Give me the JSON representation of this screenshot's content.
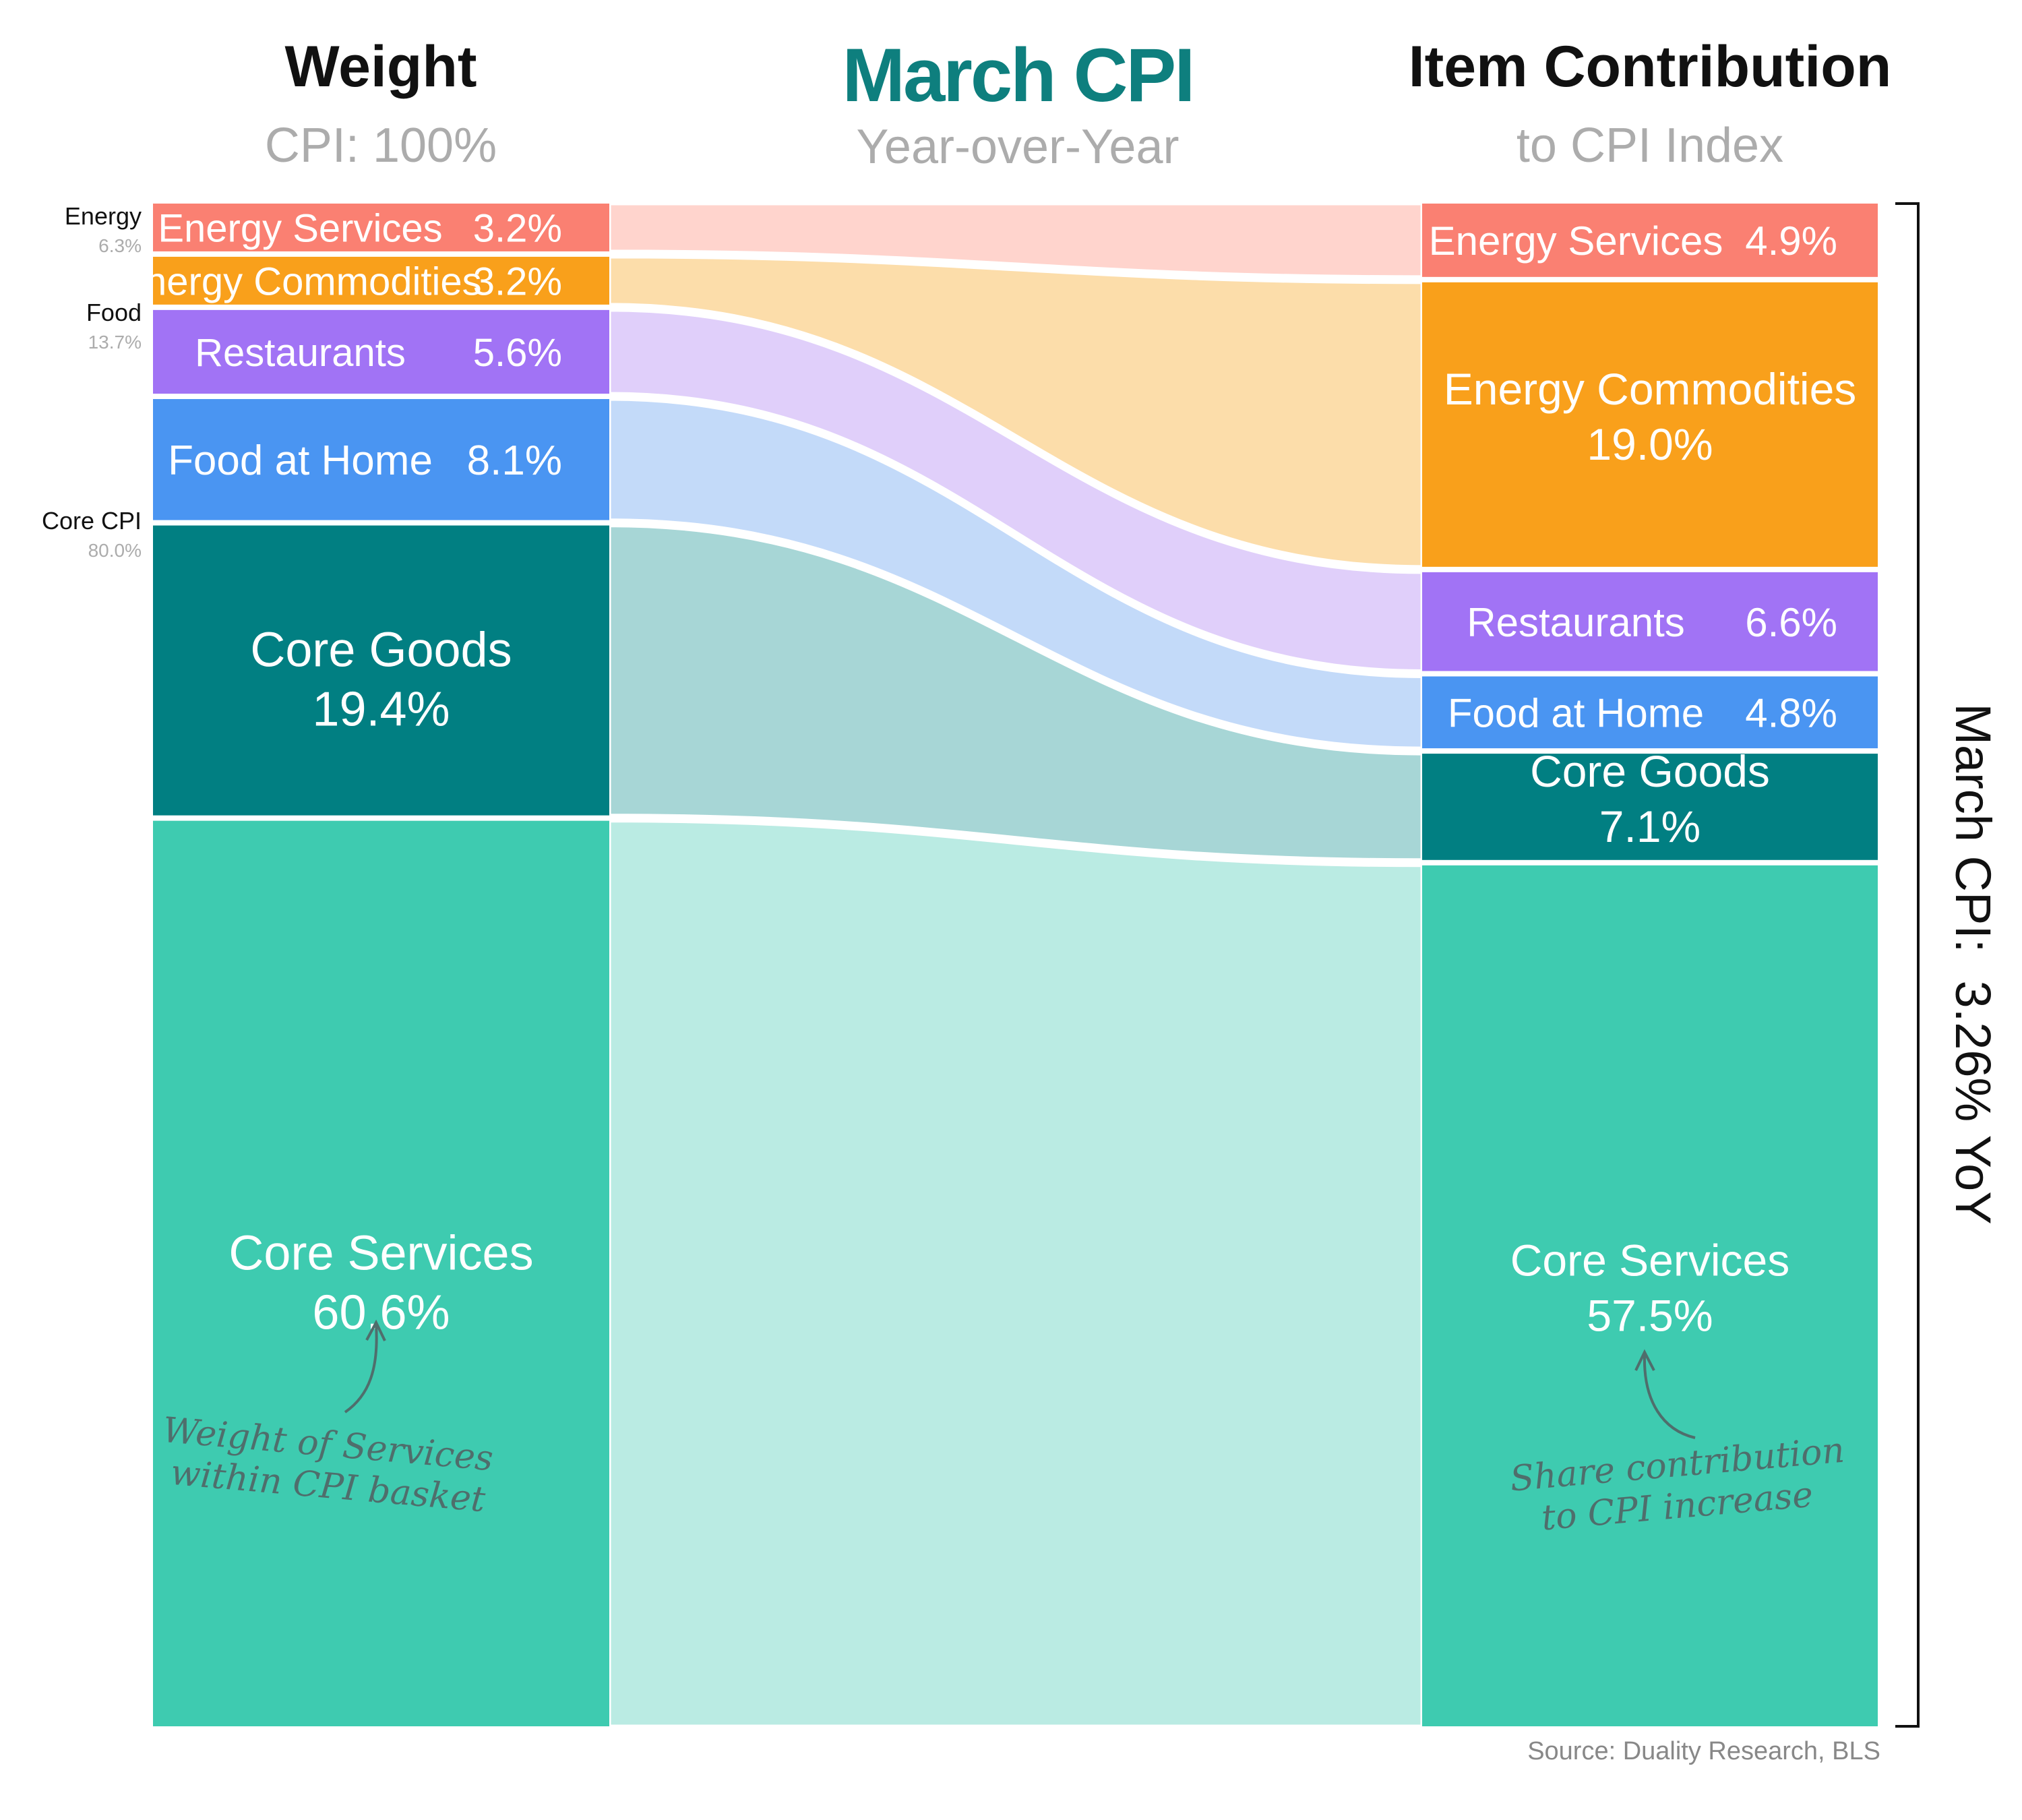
{
  "header": {
    "left_title": "Weight",
    "left_subtitle": "CPI: 100%",
    "center_title": "March CPI",
    "center_subtitle": "Year-over-Year",
    "right_title": "Item Contribution",
    "right_subtitle": "to CPI Index"
  },
  "groups": [
    {
      "name": "Energy",
      "value": "6.3%"
    },
    {
      "name": "Food",
      "value": "13.7%"
    },
    {
      "name": "Core CPI",
      "value": "80.0%"
    }
  ],
  "chart_data": {
    "type": "sankey",
    "title": "March CPI",
    "subtitle": "Year-over-Year",
    "left_axis_title": "Weight",
    "right_axis_title": "Item Contribution",
    "total_label": "March CPI:  3.26% YoY",
    "items": [
      {
        "name": "Energy Services",
        "weight": 3.2,
        "weight_label": "3.2%",
        "contribution": 4.9,
        "contribution_label": "4.9%",
        "color": "#FA8072",
        "flow_color": "#FFD4CD"
      },
      {
        "name": "Energy Commodities",
        "weight": 3.2,
        "weight_label": "3.2%",
        "contribution": 19.0,
        "contribution_label": "19.0%",
        "color": "#F9A01B",
        "flow_color": "#FCDDAA"
      },
      {
        "name": "Restaurants",
        "weight": 5.6,
        "weight_label": "5.6%",
        "contribution": 6.6,
        "contribution_label": "6.6%",
        "color": "#A173F5",
        "flow_color": "#E0CFFA"
      },
      {
        "name": "Food at Home",
        "weight": 8.1,
        "weight_label": "8.1%",
        "contribution": 4.8,
        "contribution_label": "4.8%",
        "color": "#4A95F2",
        "flow_color": "#C3DAF9"
      },
      {
        "name": "Core Goods",
        "weight": 19.4,
        "weight_label": "19.4%",
        "contribution": 7.1,
        "contribution_label": "7.1%",
        "color": "#017F82",
        "flow_color": "#A7D6D6"
      },
      {
        "name": "Core Services",
        "weight": 60.6,
        "weight_label": "60.6%",
        "contribution": 57.5,
        "contribution_label": "57.5%",
        "color": "#3ECBB0",
        "flow_color": "#BAEBE3"
      }
    ],
    "annotations": {
      "left": [
        "Weight of Services",
        "within CPI basket"
      ],
      "right": [
        "Share contribution",
        "to CPI increase"
      ]
    },
    "source": "Source: Duality Research, BLS"
  }
}
